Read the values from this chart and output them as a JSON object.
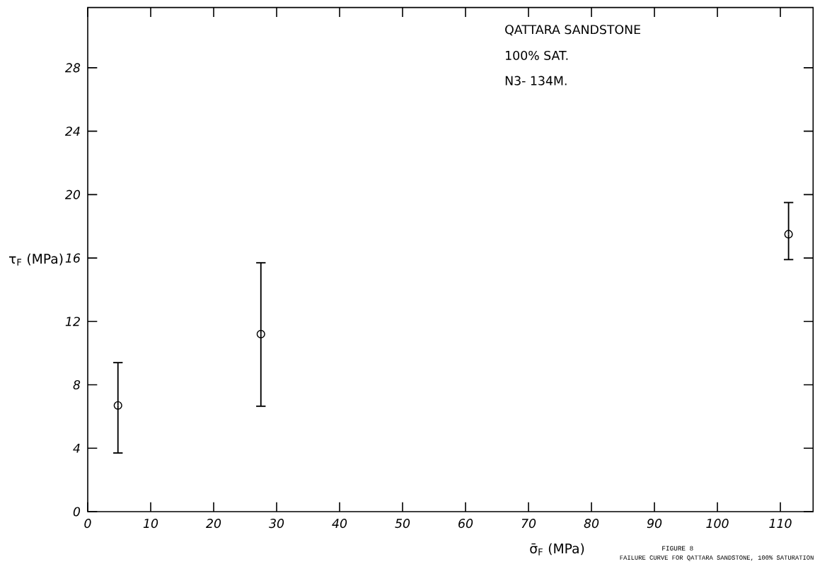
{
  "chart_data": {
    "type": "scatter",
    "xlabel": "σ̄$_{F}$ (MPa)",
    "ylabel": "τ$_{F}$ (MPa)",
    "x": [
      4.8,
      27.5,
      111.3
    ],
    "values": [
      6.7,
      11.2,
      17.5
    ],
    "errors": [
      [
        3.7,
        9.4
      ],
      [
        6.65,
        15.7
      ],
      [
        15.9,
        19.5
      ]
    ],
    "color": "#000000",
    "marker": "circle",
    "xlim": [
      0,
      115.2
    ],
    "ylim": [
      0,
      31.8
    ],
    "xticks": [
      0,
      10,
      20,
      30,
      40,
      50,
      60,
      70,
      80,
      90,
      100,
      110
    ],
    "yticks": [
      0,
      4,
      8,
      12,
      16,
      20,
      24,
      28
    ],
    "grid": false,
    "annotations": [
      "QATTARA SANDSTONE",
      "100% SAT.",
      "N3- 134M.",
      "FIGURE 8",
      "FAILURE CURVE FOR QATTARA SANDSTONE, 100% SATURATION"
    ]
  }
}
